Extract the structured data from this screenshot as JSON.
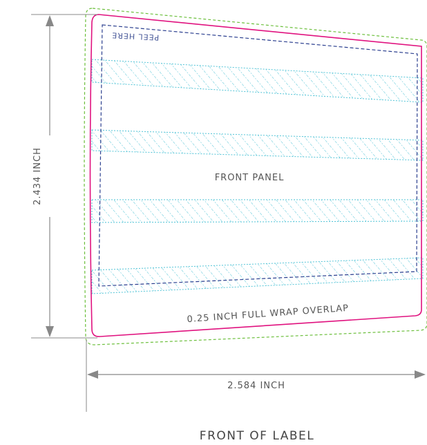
{
  "colors": {
    "trim": "#e0127f",
    "bleed": "#6cbf3c",
    "safe": "#2b3f8f",
    "hatch": "#4fc3d6",
    "dimension": "#888888",
    "text": "#555555"
  },
  "labels": {
    "height_dimension": "2.434 INCH",
    "width_dimension": "2.584 INCH",
    "front_panel": "FRONT PANEL",
    "overlap": "0.25 INCH FULL WRAP OVERLAP",
    "peel_here": "PEEL HERE",
    "caption": "FRONT OF LABEL"
  }
}
